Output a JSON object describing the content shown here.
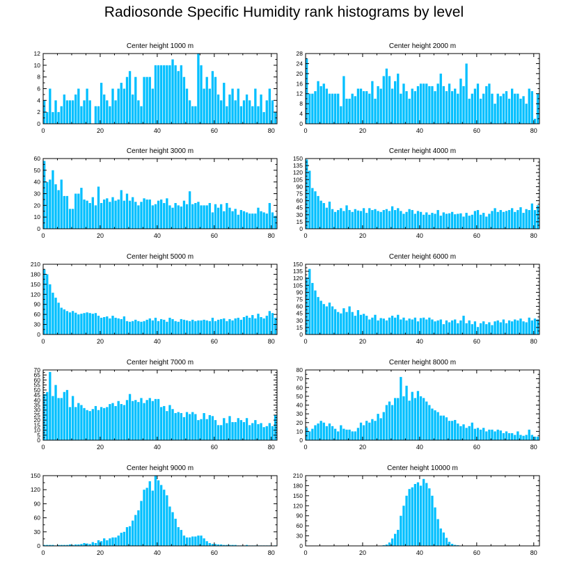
{
  "title": "Radiosonde Specific Humidity rank histograms by level",
  "colors": {
    "bar": "#00BFFF",
    "bar_edge": "#ffffff",
    "axis": "#000000"
  },
  "chart_data": [
    {
      "type": "bar",
      "title": "Center height 1000 m",
      "xlim": [
        0,
        82
      ],
      "ylim": [
        0,
        12
      ],
      "xticks": [
        0,
        20,
        40,
        60,
        80
      ],
      "yticks": [
        0,
        2,
        4,
        6,
        8,
        10,
        12
      ],
      "values": [
        4,
        2,
        6,
        2,
        4,
        2,
        3,
        5,
        4,
        4,
        4,
        5,
        6,
        3,
        4,
        6,
        4,
        0,
        3,
        3,
        7,
        5,
        4,
        3,
        6,
        4,
        6,
        7,
        6,
        8,
        9,
        5,
        8,
        4,
        3,
        8,
        8,
        8,
        6,
        10,
        10,
        10,
        10,
        10,
        10,
        11,
        10,
        9,
        10,
        8,
        6,
        4,
        3,
        3,
        12,
        10,
        6,
        8,
        6,
        9,
        8,
        5,
        4,
        7,
        3,
        5,
        6,
        4,
        6,
        3,
        4,
        5,
        4,
        3,
        6,
        3,
        5,
        2,
        4,
        6,
        4,
        2
      ]
    },
    {
      "type": "bar",
      "title": "Center height 2000 m",
      "xlim": [
        0,
        82
      ],
      "ylim": [
        0,
        28
      ],
      "xticks": [
        0,
        20,
        40,
        60,
        80
      ],
      "yticks": [
        0,
        4,
        8,
        12,
        16,
        20,
        24,
        28
      ],
      "values": [
        26,
        12,
        12,
        13,
        17,
        15,
        16,
        14,
        12,
        12,
        12,
        12,
        7,
        19,
        10,
        10,
        12,
        11,
        14,
        14,
        13,
        13,
        12,
        17,
        10,
        15,
        14,
        19,
        22,
        19,
        14,
        17,
        20,
        12,
        16,
        13,
        10,
        14,
        13,
        15,
        16,
        16,
        16,
        15,
        15,
        13,
        16,
        20,
        15,
        13,
        16,
        13,
        14,
        12,
        18,
        15,
        24,
        10,
        12,
        14,
        16,
        10,
        12,
        15,
        16,
        12,
        8,
        12,
        11,
        12,
        13,
        10,
        14,
        12,
        12,
        10,
        11,
        8,
        14,
        13,
        2,
        12
      ]
    },
    {
      "type": "bar",
      "title": "Center height 3000 m",
      "xlim": [
        0,
        82
      ],
      "ylim": [
        0,
        60
      ],
      "xticks": [
        0,
        20,
        40,
        60,
        80
      ],
      "yticks": [
        0,
        10,
        20,
        30,
        40,
        50,
        60
      ],
      "values": [
        58,
        40,
        42,
        50,
        38,
        33,
        42,
        28,
        28,
        17,
        17,
        30,
        30,
        35,
        25,
        24,
        22,
        27,
        20,
        36,
        22,
        25,
        26,
        23,
        27,
        24,
        25,
        33,
        24,
        30,
        24,
        27,
        23,
        20,
        23,
        26,
        25,
        25,
        20,
        21,
        24,
        25,
        22,
        26,
        20,
        18,
        22,
        20,
        19,
        24,
        21,
        32,
        21,
        22,
        23,
        20,
        20,
        20,
        22,
        14,
        21,
        18,
        21,
        15,
        22,
        18,
        15,
        17,
        12,
        16,
        15,
        14,
        13,
        13,
        13,
        18,
        15,
        14,
        13,
        22,
        14,
        11
      ]
    },
    {
      "type": "bar",
      "title": "Center height 4000 m",
      "xlim": [
        0,
        82
      ],
      "ylim": [
        0,
        150
      ],
      "xticks": [
        0,
        20,
        40,
        60,
        80
      ],
      "yticks": [
        0,
        15,
        30,
        45,
        60,
        75,
        90,
        105,
        120,
        135,
        150
      ],
      "values": [
        148,
        124,
        87,
        80,
        70,
        60,
        55,
        45,
        58,
        42,
        36,
        40,
        44,
        38,
        50,
        40,
        36,
        42,
        39,
        38,
        44,
        34,
        44,
        40,
        42,
        38,
        36,
        40,
        42,
        38,
        48,
        40,
        44,
        38,
        32,
        36,
        42,
        40,
        32,
        38,
        36,
        30,
        35,
        30,
        34,
        32,
        40,
        28,
        35,
        32,
        33,
        36,
        31,
        32,
        33,
        26,
        34,
        28,
        30,
        38,
        40,
        30,
        34,
        26,
        32,
        38,
        44,
        36,
        40,
        36,
        38,
        40,
        44,
        36,
        40,
        46,
        34,
        42,
        40,
        54,
        40,
        50
      ]
    },
    {
      "type": "bar",
      "title": "Center height 5000 m",
      "xlim": [
        0,
        82
      ],
      "ylim": [
        0,
        210
      ],
      "xticks": [
        0,
        20,
        40,
        60,
        80
      ],
      "yticks": [
        0,
        30,
        60,
        90,
        120,
        150,
        180,
        210
      ],
      "values": [
        195,
        180,
        150,
        125,
        110,
        95,
        80,
        75,
        70,
        66,
        70,
        65,
        60,
        62,
        64,
        66,
        64,
        62,
        64,
        56,
        50,
        52,
        54,
        48,
        56,
        50,
        48,
        46,
        54,
        40,
        38,
        40,
        44,
        40,
        38,
        40,
        44,
        48,
        42,
        50,
        40,
        46,
        44,
        38,
        50,
        46,
        40,
        38,
        46,
        44,
        42,
        40,
        44,
        40,
        42,
        42,
        44,
        42,
        40,
        50,
        40,
        44,
        46,
        48,
        40,
        46,
        42,
        48,
        50,
        44,
        52,
        56,
        50,
        58,
        48,
        62,
        52,
        48,
        56,
        70,
        64,
        50
      ]
    },
    {
      "type": "bar",
      "title": "Center height 6000 m",
      "xlim": [
        0,
        82
      ],
      "ylim": [
        0,
        150
      ],
      "xticks": [
        0,
        20,
        40,
        60,
        80
      ],
      "yticks": [
        0,
        15,
        30,
        45,
        60,
        75,
        90,
        105,
        120,
        135,
        150
      ],
      "values": [
        122,
        140,
        110,
        94,
        80,
        72,
        65,
        60,
        68,
        60,
        54,
        48,
        45,
        56,
        48,
        60,
        48,
        40,
        52,
        42,
        44,
        40,
        32,
        36,
        42,
        30,
        35,
        34,
        30,
        36,
        40,
        36,
        42,
        32,
        36,
        30,
        34,
        32,
        36,
        28,
        35,
        36,
        32,
        36,
        32,
        28,
        30,
        32,
        22,
        30,
        26,
        30,
        32,
        24,
        30,
        40,
        24,
        30,
        22,
        28,
        16,
        24,
        28,
        22,
        26,
        20,
        28,
        30,
        26,
        32,
        24,
        30,
        28,
        32,
        30,
        34,
        28,
        26,
        36,
        30,
        34,
        32
      ]
    },
    {
      "type": "bar",
      "title": "Center height 7000 m",
      "xlim": [
        0,
        82
      ],
      "ylim": [
        0,
        70
      ],
      "xticks": [
        0,
        20,
        40,
        60,
        80
      ],
      "yticks": [
        0,
        5,
        10,
        15,
        20,
        25,
        30,
        35,
        40,
        45,
        50,
        55,
        60,
        65,
        70
      ],
      "values": [
        46,
        48,
        68,
        44,
        55,
        42,
        42,
        48,
        50,
        33,
        44,
        33,
        37,
        35,
        32,
        30,
        29,
        31,
        34,
        30,
        33,
        32,
        33,
        36,
        37,
        34,
        39,
        36,
        35,
        40,
        46,
        39,
        40,
        38,
        42,
        37,
        40,
        42,
        39,
        41,
        41,
        33,
        34,
        29,
        35,
        31,
        27,
        28,
        27,
        23,
        28,
        26,
        28,
        26,
        20,
        21,
        27,
        21,
        25,
        24,
        20,
        15,
        15,
        22,
        17,
        24,
        18,
        18,
        22,
        20,
        18,
        22,
        15,
        17,
        20,
        16,
        17,
        13,
        14,
        17,
        14,
        25
      ]
    },
    {
      "type": "bar",
      "title": "Center height 8000 m",
      "xlim": [
        0,
        82
      ],
      "ylim": [
        0,
        80
      ],
      "xticks": [
        0,
        20,
        40,
        60,
        80
      ],
      "yticks": [
        0,
        10,
        20,
        30,
        40,
        50,
        60,
        70,
        80
      ],
      "values": [
        14,
        10,
        13,
        17,
        19,
        22,
        20,
        16,
        19,
        16,
        13,
        10,
        17,
        13,
        12,
        12,
        10,
        10,
        14,
        20,
        17,
        22,
        20,
        24,
        22,
        30,
        25,
        32,
        40,
        44,
        40,
        48,
        48,
        72,
        50,
        62,
        45,
        55,
        48,
        56,
        50,
        48,
        44,
        40,
        36,
        34,
        32,
        28,
        28,
        26,
        22,
        22,
        23,
        19,
        16,
        18,
        14,
        16,
        20,
        13,
        14,
        12,
        14,
        10,
        12,
        12,
        10,
        12,
        11,
        8,
        10,
        8,
        8,
        6,
        10,
        6,
        5,
        6,
        12,
        6,
        4,
        4
      ]
    },
    {
      "type": "bar",
      "title": "Center height 9000 m",
      "xlim": [
        0,
        82
      ],
      "ylim": [
        0,
        150
      ],
      "xticks": [
        0,
        20,
        40,
        60,
        80
      ],
      "yticks": [
        0,
        30,
        60,
        90,
        120,
        150
      ],
      "values": [
        2,
        2,
        2,
        2,
        1,
        2,
        2,
        2,
        2,
        3,
        2,
        3,
        3,
        4,
        6,
        5,
        4,
        8,
        6,
        12,
        10,
        16,
        12,
        16,
        18,
        18,
        22,
        28,
        30,
        40,
        42,
        54,
        66,
        76,
        96,
        120,
        124,
        138,
        118,
        150,
        140,
        130,
        120,
        108,
        84,
        72,
        58,
        40,
        34,
        22,
        18,
        18,
        20,
        20,
        22,
        22,
        16,
        10,
        6,
        4,
        4,
        3,
        3,
        2,
        2,
        2,
        2,
        2,
        1,
        1,
        1,
        2,
        1,
        1,
        1,
        1,
        1,
        1,
        1,
        1,
        0,
        1
      ]
    },
    {
      "type": "bar",
      "title": "Center height 10000 m",
      "xlim": [
        0,
        82
      ],
      "ylim": [
        0,
        210
      ],
      "xticks": [
        0,
        20,
        40,
        60,
        80
      ],
      "yticks": [
        0,
        30,
        60,
        90,
        120,
        150,
        180,
        210
      ],
      "values": [
        0,
        0,
        0,
        0,
        0,
        0,
        0,
        0,
        0,
        0,
        0,
        0,
        0,
        0,
        0,
        0,
        0,
        0,
        0,
        0,
        0,
        0,
        0,
        0,
        0,
        0,
        1,
        2,
        4,
        10,
        22,
        36,
        48,
        90,
        120,
        150,
        170,
        175,
        185,
        190,
        180,
        200,
        188,
        172,
        150,
        115,
        80,
        52,
        40,
        24,
        12,
        6,
        3,
        2,
        1,
        1,
        1,
        0,
        0,
        0,
        0,
        0,
        0,
        0,
        0,
        0,
        0,
        0,
        0,
        0,
        0,
        0,
        0,
        0,
        0,
        0,
        0,
        0,
        0,
        0,
        0,
        0
      ]
    }
  ]
}
